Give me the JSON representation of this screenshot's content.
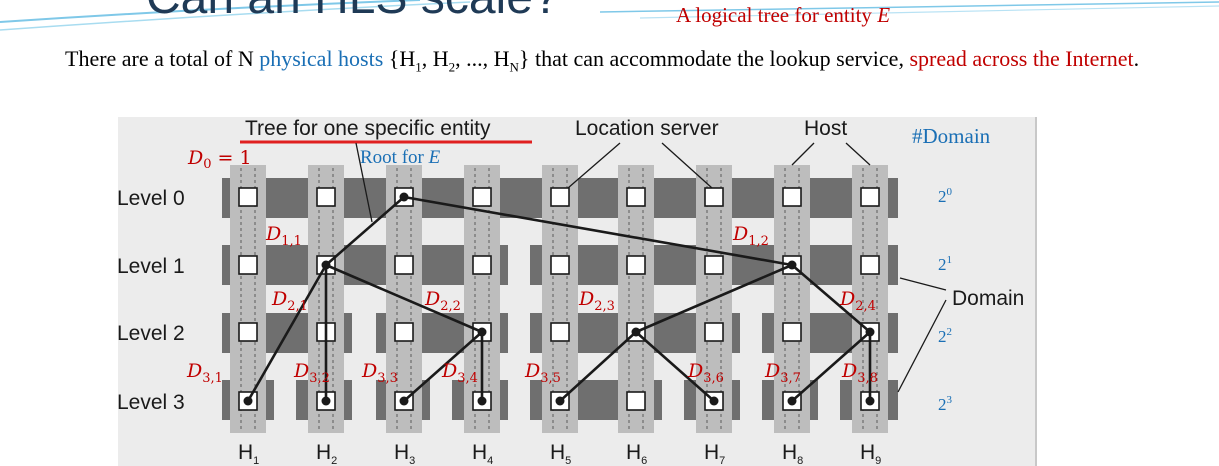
{
  "slide": {
    "title": "Can an HLS scale?",
    "subtitle_prefix": "A logical tree for entity ",
    "subtitle_entity": "E",
    "para_part1": "There are a total of N ",
    "para_physical": "physical hosts",
    "para_part2": " {H",
    "para_sub1": "1",
    "para_part3": ", H",
    "para_sub2": "2",
    "para_part4": ", ..., H",
    "para_subN": "N",
    "para_part5": "} that can accommodate the lookup service, ",
    "para_spread": "spread across the Internet",
    "para_end": "."
  },
  "diagram": {
    "tree_label": "Tree for one specific entity",
    "location_server_label": "Location server",
    "host_label": "Host",
    "domain_header": "#Domain",
    "domain_label": "Domain",
    "root_label_prefix": "Root for ",
    "root_label_entity": "E",
    "d0_label": "D",
    "d0_sub": "0",
    "d0_value": " = 1",
    "levels": [
      "Level 0",
      "Level 1",
      "Level 2",
      "Level 3"
    ],
    "domain_counts": [
      {
        "base": "2",
        "exp": "0"
      },
      {
        "base": "2",
        "exp": "1"
      },
      {
        "base": "2",
        "exp": "2"
      },
      {
        "base": "2",
        "exp": "3"
      }
    ],
    "hosts": [
      {
        "name": "H",
        "sub": "1"
      },
      {
        "name": "H",
        "sub": "2"
      },
      {
        "name": "H",
        "sub": "3"
      },
      {
        "name": "H",
        "sub": "4"
      },
      {
        "name": "H",
        "sub": "5"
      },
      {
        "name": "H",
        "sub": "6"
      },
      {
        "name": "H",
        "sub": "7"
      },
      {
        "name": "H",
        "sub": "8"
      },
      {
        "name": "H",
        "sub": "9"
      }
    ],
    "domain_labels": [
      {
        "d": "D",
        "sub": "1,1"
      },
      {
        "d": "D",
        "sub": "1,2"
      },
      {
        "d": "D",
        "sub": "2,1"
      },
      {
        "d": "D",
        "sub": "2,2"
      },
      {
        "d": "D",
        "sub": "2,3"
      },
      {
        "d": "D",
        "sub": "2,4"
      },
      {
        "d": "D",
        "sub": "3,1"
      },
      {
        "d": "D",
        "sub": "3,2"
      },
      {
        "d": "D",
        "sub": "3,3"
      },
      {
        "d": "D",
        "sub": "3,4"
      },
      {
        "d": "D",
        "sub": "3,5"
      },
      {
        "d": "D",
        "sub": "3,6"
      },
      {
        "d": "D",
        "sub": "3,7"
      },
      {
        "d": "D",
        "sub": "3,8"
      }
    ]
  }
}
